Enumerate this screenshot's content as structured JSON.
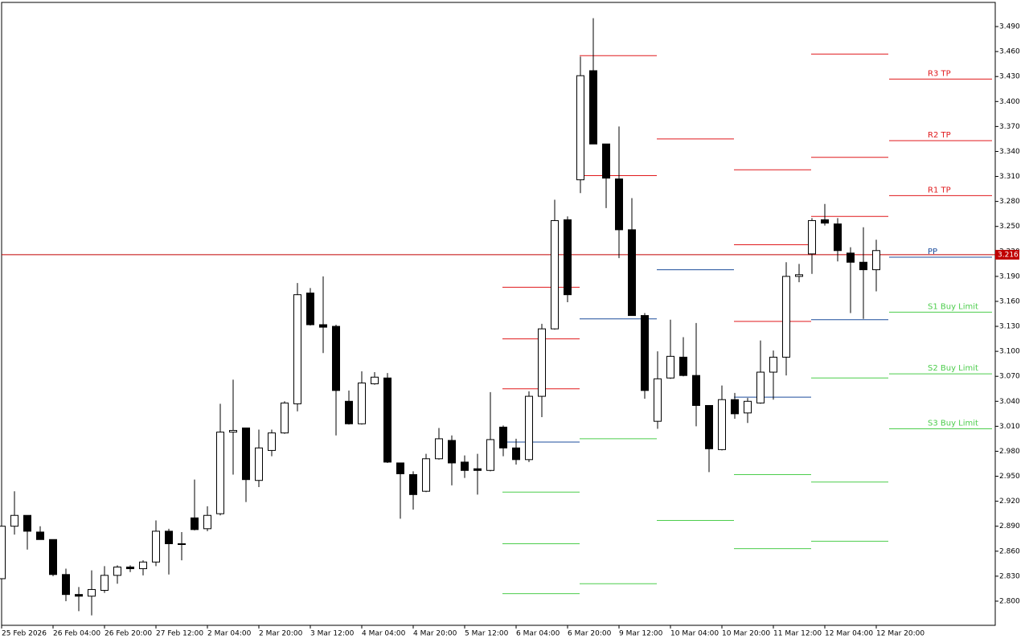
{
  "chart_data": {
    "type": "candlestick",
    "categories": [
      "25 Feb 2026",
      null,
      null,
      null,
      "26 Feb 04:00",
      null,
      null,
      null,
      "26 Feb 20:00",
      null,
      null,
      null,
      "27 Feb 12:00",
      null,
      null,
      null,
      "2 Mar 04:00",
      null,
      null,
      null,
      "2 Mar 20:00",
      null,
      null,
      null,
      "3 Mar 12:00",
      null,
      null,
      null,
      "4 Mar 04:00",
      null,
      null,
      null,
      "4 Mar 20:00",
      null,
      null,
      null,
      "5 Mar 12:00",
      null,
      null,
      null,
      "6 Mar 04:00",
      null,
      null,
      null,
      "6 Mar 20:00",
      null,
      null,
      null,
      "9 Mar 12:00",
      null,
      null,
      null,
      "10 Mar 04:00",
      null,
      null,
      null,
      "10 Mar 20:00",
      null,
      null,
      null,
      "11 Mar 12:00",
      null,
      null,
      null,
      "12 Mar 04:00",
      null,
      null,
      null,
      "12 Mar 20:00"
    ],
    "open": [
      2.827,
      2.89,
      2.903,
      2.883,
      2.874,
      2.832,
      2.808,
      2.806,
      2.813,
      2.831,
      2.841,
      2.839,
      2.847,
      2.884,
      2.869,
      2.9,
      2.887,
      2.905,
      3.003,
      3.008,
      2.945,
      2.981,
      3.002,
      3.037,
      3.17,
      3.132,
      3.13,
      3.04,
      3.013,
      3.061,
      3.068,
      2.966,
      2.952,
      2.932,
      2.971,
      2.993,
      2.967,
      2.959,
      2.957,
      3.009,
      2.984,
      2.97,
      3.046,
      3.127,
      3.258,
      3.306,
      3.437,
      3.349,
      3.307,
      3.246,
      3.143,
      3.016,
      3.068,
      3.093,
      3.071,
      3.035,
      2.982,
      3.042,
      3.026,
      3.038,
      3.075,
      3.093,
      3.19,
      3.217,
      3.258,
      3.253,
      3.218,
      3.207,
      3.198
    ],
    "high": [
      2.89,
      2.932,
      2.903,
      2.89,
      2.874,
      2.839,
      2.817,
      2.837,
      2.842,
      2.843,
      2.843,
      2.849,
      2.897,
      2.887,
      2.883,
      2.946,
      2.914,
      3.037,
      3.066,
      3.008,
      3.006,
      3.006,
      3.04,
      3.182,
      3.176,
      3.19,
      3.132,
      3.053,
      3.076,
      3.075,
      3.074,
      2.966,
      2.956,
      2.977,
      3.008,
      2.999,
      2.975,
      2.977,
      3.051,
      3.011,
      2.995,
      3.052,
      3.133,
      3.282,
      3.262,
      3.454,
      3.5,
      3.349,
      3.37,
      3.284,
      3.146,
      3.1,
      3.138,
      3.117,
      3.134,
      3.035,
      3.059,
      3.05,
      3.044,
      3.113,
      3.101,
      3.207,
      3.205,
      3.26,
      3.277,
      3.26,
      3.225,
      3.249,
      3.234
    ],
    "low": [
      2.827,
      2.88,
      2.862,
      2.874,
      2.83,
      2.8,
      2.788,
      2.783,
      2.81,
      2.821,
      2.835,
      2.831,
      2.842,
      2.832,
      2.849,
      2.885,
      2.884,
      2.903,
      2.952,
      2.919,
      2.937,
      2.974,
      3.001,
      3.028,
      3.131,
      3.098,
      2.999,
      3.012,
      3.012,
      3.06,
      2.966,
      2.899,
      2.91,
      2.931,
      2.97,
      2.939,
      2.948,
      2.928,
      2.956,
      2.974,
      2.964,
      2.967,
      3.021,
      3.126,
      3.159,
      3.29,
      3.349,
      3.272,
      3.212,
      3.143,
      3.043,
      3.007,
      3.067,
      3.07,
      3.01,
      2.955,
      2.981,
      3.019,
      3.014,
      3.037,
      3.042,
      3.071,
      3.183,
      3.193,
      3.251,
      3.208,
      3.146,
      3.139,
      3.172
    ],
    "close": [
      2.89,
      2.903,
      2.884,
      2.874,
      2.832,
      2.808,
      2.806,
      2.814,
      2.831,
      2.841,
      2.839,
      2.847,
      2.884,
      2.869,
      2.868,
      2.886,
      2.903,
      3.003,
      3.005,
      2.946,
      2.984,
      3.002,
      3.038,
      3.168,
      3.132,
      3.129,
      3.053,
      3.013,
      3.062,
      3.069,
      2.967,
      2.953,
      2.928,
      2.971,
      2.995,
      2.966,
      2.957,
      2.957,
      2.994,
      2.984,
      2.97,
      3.046,
      3.127,
      3.257,
      3.168,
      3.431,
      3.349,
      3.308,
      3.246,
      3.143,
      3.053,
      3.067,
      3.094,
      3.071,
      3.035,
      2.983,
      3.042,
      3.025,
      3.04,
      3.075,
      3.093,
      3.19,
      3.192,
      3.257,
      3.254,
      3.221,
      3.207,
      3.198,
      3.221
    ],
    "up_color": "#ffffff",
    "down_color": "#000000",
    "ylim": [
      2.771,
      3.519
    ],
    "yticks": [
      {
        "value": 3.49,
        "label": "3.490"
      },
      {
        "value": 3.46,
        "label": "3.460"
      },
      {
        "value": 3.43,
        "label": "3.430"
      },
      {
        "value": 3.4,
        "label": "3.400"
      },
      {
        "value": 3.37,
        "label": "3.370"
      },
      {
        "value": 3.34,
        "label": "3.340"
      },
      {
        "value": 3.31,
        "label": "3.310"
      },
      {
        "value": 3.28,
        "label": "3.280"
      },
      {
        "value": 3.25,
        "label": "3.250"
      },
      {
        "value": 3.22,
        "label": "3.220"
      },
      {
        "value": 3.19,
        "label": "3.190"
      },
      {
        "value": 3.16,
        "label": "3.160"
      },
      {
        "value": 3.13,
        "label": "3.130"
      },
      {
        "value": 3.1,
        "label": "3.100"
      },
      {
        "value": 3.07,
        "label": "3.070"
      },
      {
        "value": 3.04,
        "label": "3.040"
      },
      {
        "value": 3.01,
        "label": "3.010"
      },
      {
        "value": 2.98,
        "label": "2.980"
      },
      {
        "value": 2.95,
        "label": "2.950"
      },
      {
        "value": 2.92,
        "label": "2.920"
      },
      {
        "value": 2.89,
        "label": "2.890"
      },
      {
        "value": 2.86,
        "label": "2.860"
      },
      {
        "value": 2.83,
        "label": "2.830"
      },
      {
        "value": 2.8,
        "label": "2.800"
      }
    ],
    "grid": false,
    "current_price": {
      "value": 3.216,
      "label": "3.216",
      "color": "#c00000"
    },
    "resistance_color": "#e0191c",
    "pivot_color": "#1c4d9c",
    "support_color": "#4ccd4c",
    "pivot_days": [
      {
        "start": 39,
        "resistance": [
          3.177,
          3.115,
          3.055
        ],
        "pivot": 2.991,
        "support": [
          2.931,
          2.869,
          2.809
        ]
      },
      {
        "start": 45,
        "resistance": [
          3.311,
          3.455
        ],
        "pivot": 3.139,
        "support": [
          2.995,
          2.821
        ]
      },
      {
        "start": 51,
        "resistance": [
          3.355
        ],
        "pivot": 3.198,
        "support": [
          2.897
        ]
      },
      {
        "start": 57,
        "resistance": [
          3.136,
          3.228,
          3.318
        ],
        "pivot": 3.045,
        "support": [
          2.952,
          2.863
        ]
      },
      {
        "start": 63,
        "resistance": [
          3.262,
          3.333,
          3.457
        ],
        "pivot": 3.138,
        "support": [
          3.068,
          2.943,
          2.872
        ]
      }
    ],
    "targets": [
      {
        "label": "R3 TP",
        "value": 3.427,
        "color": "#e0191c"
      },
      {
        "label": "R2 TP",
        "value": 3.353,
        "color": "#e0191c"
      },
      {
        "label": "R1 TP",
        "value": 3.287,
        "color": "#e0191c"
      },
      {
        "label": "PP",
        "value": 3.213,
        "color": "#1c4d9c"
      },
      {
        "label": "S1 Buy Limit",
        "value": 3.147,
        "color": "#4ccd4c"
      },
      {
        "label": "S2 Buy Limit",
        "value": 3.073,
        "color": "#4ccd4c"
      },
      {
        "label": "S3 Buy Limit",
        "value": 3.007,
        "color": "#4ccd4c"
      }
    ]
  }
}
